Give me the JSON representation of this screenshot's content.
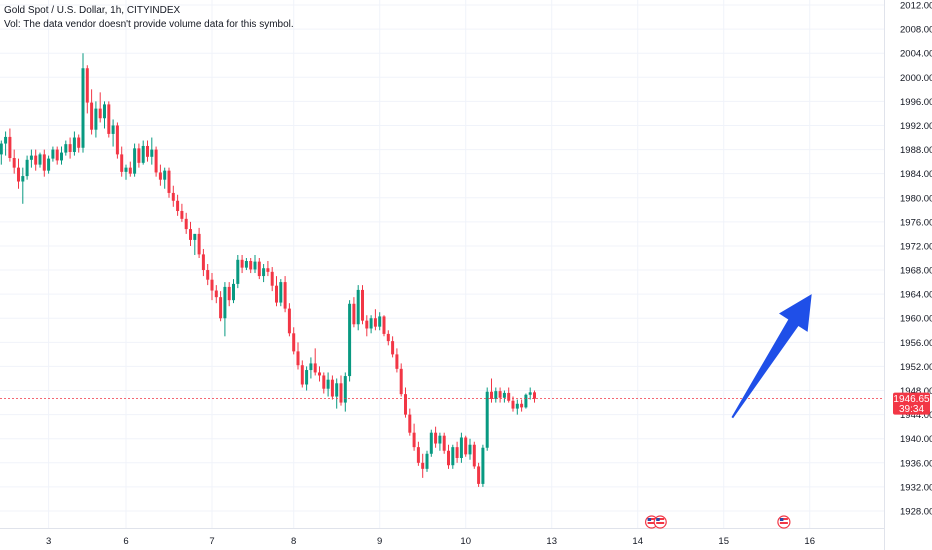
{
  "legend": {
    "title": "Gold Spot / U.S. Dollar, 1h, CITYINDEX",
    "vol_note": "Vol: The data vendor doesn't provide volume data for this symbol."
  },
  "price_tag": {
    "price": "1946.65",
    "countdown": "39:34"
  },
  "colors": {
    "up": "#089981",
    "down": "#f23645",
    "grid": "#f0f3fa",
    "axis_line": "#e0e3eb",
    "current_line": "#f23645",
    "arrow": "#1f4fe8",
    "event_flag": "#f23645"
  },
  "icons": [
    "us-flag-event-icon",
    "us-flag-event-icon",
    "us-flag-event-icon"
  ],
  "chart_data": {
    "type": "candlestick",
    "title": "Gold Spot / U.S. Dollar, 1h, CITYINDEX",
    "xlabel": "",
    "ylabel": "",
    "ylim": [
      1926,
      2013
    ],
    "grid": true,
    "y_ticks": [
      2012.0,
      2008.0,
      2004.0,
      2000.0,
      1996.0,
      1992.0,
      1988.0,
      1984.0,
      1980.0,
      1976.0,
      1972.0,
      1968.0,
      1964.0,
      1960.0,
      1956.0,
      1952.0,
      1948.0,
      1944.0,
      1940.0,
      1936.0,
      1932.0,
      1928.0
    ],
    "x_ticks": [
      {
        "label": "3",
        "index": 12
      },
      {
        "label": "6",
        "index": 30
      },
      {
        "label": "7",
        "index": 50
      },
      {
        "label": "8",
        "index": 69
      },
      {
        "label": "9",
        "index": 89
      },
      {
        "label": "10",
        "index": 109
      },
      {
        "label": "13",
        "index": 129
      },
      {
        "label": "14",
        "index": 149
      },
      {
        "label": "15",
        "index": 169
      },
      {
        "label": "16",
        "index": 189
      }
    ],
    "current_price": 1946.65,
    "candles": [
      [
        1988.5,
        1990,
        1986,
        1987.2
      ],
      [
        1987.2,
        1989.5,
        1985.5,
        1989.0
      ],
      [
        1989.0,
        1991,
        1987,
        1990.1
      ],
      [
        1990.1,
        1991.5,
        1986,
        1986.6
      ],
      [
        1986.6,
        1988,
        1984,
        1985.0
      ],
      [
        1985.0,
        1986.5,
        1981.5,
        1982.7
      ],
      [
        1982.7,
        1985,
        1979,
        1983.6
      ],
      [
        1983.6,
        1987,
        1983,
        1986.3
      ],
      [
        1986.3,
        1988,
        1985,
        1987.0
      ],
      [
        1987.0,
        1988,
        1984.5,
        1985.5
      ],
      [
        1985.5,
        1987.5,
        1985,
        1987.2
      ],
      [
        1987.2,
        1988,
        1983.5,
        1984.5
      ],
      [
        1984.5,
        1987,
        1984,
        1986.5
      ],
      [
        1986.5,
        1988.5,
        1986,
        1988.0
      ],
      [
        1988.0,
        1988.5,
        1985.5,
        1986.2
      ],
      [
        1986.2,
        1988.5,
        1985.5,
        1987.5
      ],
      [
        1987.5,
        1989.5,
        1987,
        1988.9
      ],
      [
        1988.9,
        1990,
        1986.5,
        1987.6
      ],
      [
        1987.6,
        1991,
        1987,
        1990.0
      ],
      [
        1990.0,
        1990.5,
        1987.5,
        1988.3
      ],
      [
        1988.3,
        2004,
        1987.5,
        2001.5
      ],
      [
        2001.5,
        2002,
        1994,
        1995.8
      ],
      [
        1995.8,
        1998,
        1990.5,
        1991.3
      ],
      [
        1991.3,
        1996,
        1990,
        1994.8
      ],
      [
        1994.8,
        1997.5,
        1992.5,
        1993.2
      ],
      [
        1993.2,
        1996,
        1991.5,
        1995.5
      ],
      [
        1995.5,
        1996,
        1990,
        1990.6
      ],
      [
        1990.6,
        1993,
        1988.5,
        1992.0
      ],
      [
        1992.0,
        1992.5,
        1986.5,
        1987.2
      ],
      [
        1987.2,
        1988.5,
        1983.5,
        1984.3
      ],
      [
        1984.3,
        1985.5,
        1983,
        1985.0
      ],
      [
        1985.0,
        1986,
        1983.5,
        1984.0
      ],
      [
        1984.0,
        1989,
        1983.5,
        1988.2
      ],
      [
        1988.2,
        1989,
        1985,
        1985.8
      ],
      [
        1985.8,
        1989.5,
        1985.5,
        1988.6
      ],
      [
        1988.6,
        1989.5,
        1986,
        1986.8
      ],
      [
        1986.8,
        1990,
        1985.5,
        1988.0
      ],
      [
        1988.0,
        1988.5,
        1983.5,
        1984.2
      ],
      [
        1984.2,
        1985.5,
        1982,
        1983.0
      ],
      [
        1983.0,
        1985,
        1981.5,
        1984.5
      ],
      [
        1984.5,
        1985,
        1980,
        1980.8
      ],
      [
        1980.8,
        1982,
        1978.5,
        1979.5
      ],
      [
        1979.5,
        1980.5,
        1977,
        1977.8
      ],
      [
        1977.8,
        1979,
        1976,
        1976.5
      ],
      [
        1976.5,
        1977.5,
        1974,
        1974.8
      ],
      [
        1974.8,
        1976,
        1972,
        1973.0
      ],
      [
        1973.0,
        1974,
        1970.5,
        1974.0
      ],
      [
        1974.0,
        1975,
        1970,
        1970.6
      ],
      [
        1970.6,
        1971.5,
        1967,
        1968.0
      ],
      [
        1968.0,
        1969,
        1965.5,
        1966.4
      ],
      [
        1966.4,
        1967.5,
        1963,
        1964.6
      ],
      [
        1964.6,
        1965.5,
        1962.5,
        1963.5
      ],
      [
        1963.5,
        1964.5,
        1959.5,
        1960.0
      ],
      [
        1960.0,
        1966,
        1957,
        1965.2
      ],
      [
        1965.2,
        1966,
        1962,
        1963.0
      ],
      [
        1963.0,
        1966.5,
        1962.5,
        1965.7
      ],
      [
        1965.7,
        1970.5,
        1965,
        1969.7
      ],
      [
        1969.7,
        1970.5,
        1967.5,
        1968.4
      ],
      [
        1968.4,
        1970,
        1968,
        1969.5
      ],
      [
        1969.5,
        1970,
        1967.5,
        1968.1
      ],
      [
        1968.1,
        1970.5,
        1967.5,
        1969.4
      ],
      [
        1969.4,
        1970,
        1966.5,
        1967.0
      ],
      [
        1967.0,
        1969,
        1966,
        1968.3
      ],
      [
        1968.3,
        1969.5,
        1967,
        1967.7
      ],
      [
        1967.7,
        1968.5,
        1964.5,
        1965.4
      ],
      [
        1965.4,
        1967,
        1962,
        1962.6
      ],
      [
        1962.6,
        1966.5,
        1962,
        1966.0
      ],
      [
        1966.0,
        1967,
        1961,
        1961.6
      ],
      [
        1961.6,
        1962.5,
        1957,
        1957.5
      ],
      [
        1957.5,
        1958.5,
        1954,
        1954.5
      ],
      [
        1954.5,
        1956,
        1951.5,
        1952.2
      ],
      [
        1952.2,
        1953,
        1948.5,
        1949.0
      ],
      [
        1949.0,
        1952,
        1948,
        1951.4
      ],
      [
        1951.4,
        1953.5,
        1950,
        1952.5
      ],
      [
        1952.5,
        1955,
        1950.5,
        1951.0
      ],
      [
        1951.0,
        1952,
        1949.5,
        1950.5
      ],
      [
        1950.5,
        1951,
        1947.5,
        1948.3
      ],
      [
        1948.3,
        1951,
        1947,
        1949.8
      ],
      [
        1949.8,
        1950.5,
        1946.5,
        1947.0
      ],
      [
        1947.0,
        1950,
        1945,
        1949.2
      ],
      [
        1949.2,
        1950.5,
        1945.5,
        1946.0
      ],
      [
        1946.0,
        1951,
        1944.5,
        1950.4
      ],
      [
        1950.4,
        1963,
        1949.5,
        1962.4
      ],
      [
        1962.4,
        1963.5,
        1958.5,
        1959.0
      ],
      [
        1959.0,
        1965.5,
        1958,
        1964.7
      ],
      [
        1964.7,
        1965.5,
        1959,
        1959.6
      ],
      [
        1959.6,
        1960.5,
        1957,
        1958.3
      ],
      [
        1958.3,
        1960.5,
        1957.5,
        1960.0
      ],
      [
        1960.0,
        1961.5,
        1958,
        1958.6
      ],
      [
        1958.6,
        1961,
        1958,
        1960.3
      ],
      [
        1960.3,
        1960.5,
        1957,
        1957.4
      ],
      [
        1957.4,
        1958,
        1955.5,
        1956.2
      ],
      [
        1956.2,
        1957,
        1953.5,
        1954.0
      ],
      [
        1954.0,
        1955,
        1951,
        1951.6
      ],
      [
        1951.6,
        1952.5,
        1947,
        1947.4
      ],
      [
        1947.4,
        1948.5,
        1943.5,
        1944.0
      ],
      [
        1944.0,
        1945,
        1940.5,
        1941.0
      ],
      [
        1941.0,
        1942.5,
        1938,
        1938.6
      ],
      [
        1938.6,
        1939.5,
        1935.5,
        1936.0
      ],
      [
        1936.0,
        1937.5,
        1933.5,
        1935.0
      ],
      [
        1935.0,
        1938,
        1934.5,
        1937.5
      ],
      [
        1937.5,
        1941.5,
        1937,
        1941.0
      ],
      [
        1941.0,
        1942,
        1938.5,
        1939.2
      ],
      [
        1939.2,
        1941,
        1938,
        1940.5
      ],
      [
        1940.5,
        1941,
        1937.5,
        1938.0
      ],
      [
        1938.0,
        1939,
        1935,
        1935.6
      ],
      [
        1935.6,
        1939,
        1935,
        1938.6
      ],
      [
        1938.6,
        1939.5,
        1936,
        1936.8
      ],
      [
        1936.8,
        1941,
        1936,
        1940.2
      ],
      [
        1940.2,
        1940.5,
        1937,
        1937.4
      ],
      [
        1937.4,
        1940,
        1936.5,
        1939.0
      ],
      [
        1939.0,
        1939.5,
        1935,
        1935.4
      ],
      [
        1935.4,
        1936,
        1932,
        1932.5
      ],
      [
        1932.5,
        1939,
        1932,
        1938.5
      ],
      [
        1938.5,
        1948.5,
        1938,
        1947.8
      ],
      [
        1947.8,
        1950,
        1946,
        1946.6
      ],
      [
        1946.6,
        1948.5,
        1946,
        1947.9
      ],
      [
        1947.9,
        1948.5,
        1946,
        1946.8
      ],
      [
        1946.8,
        1948,
        1946,
        1947.6
      ],
      [
        1947.6,
        1948.5,
        1946,
        1946.3
      ],
      [
        1946.3,
        1947,
        1944.5,
        1945.0
      ],
      [
        1945.0,
        1946.5,
        1944,
        1945.8
      ],
      [
        1945.8,
        1946.5,
        1944.5,
        1945.2
      ],
      [
        1945.2,
        1947.5,
        1945,
        1947.3
      ],
      [
        1947.3,
        1948.5,
        1946.5,
        1947.7
      ],
      [
        1947.7,
        1948,
        1946,
        1946.65
      ]
    ],
    "annotations": [
      {
        "type": "arrow",
        "from": {
          "index": 171,
          "price": 1943.5
        },
        "to": {
          "index": 189,
          "price": 1964.0
        }
      }
    ]
  }
}
